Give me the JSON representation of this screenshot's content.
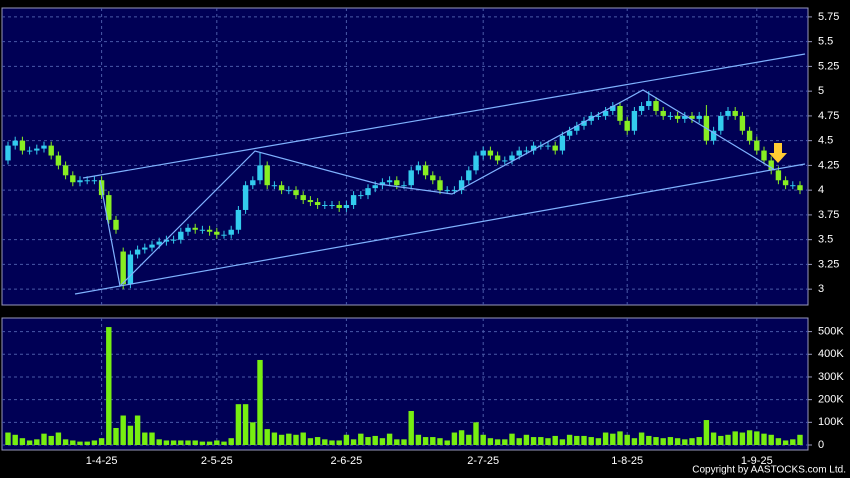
{
  "chart_data": [
    {
      "type": "candlestick",
      "up_color": "#33ccee",
      "down_color": "#88ee22",
      "grid": true,
      "open": [
        4.3,
        4.45,
        4.5,
        4.4,
        4.4,
        4.42,
        4.45,
        4.35,
        4.25,
        4.15,
        4.08,
        4.1,
        4.1,
        4.1,
        3.95,
        3.7,
        3.38,
        3.05,
        3.35,
        3.4,
        3.42,
        3.45,
        3.48,
        3.5,
        3.5,
        3.58,
        3.62,
        3.6,
        3.6,
        3.58,
        3.55,
        3.55,
        3.6,
        3.8,
        4.05,
        4.1,
        4.25,
        4.05,
        4.05,
        4.0,
        4.0,
        3.95,
        3.9,
        3.88,
        3.85,
        3.85,
        3.85,
        3.82,
        3.85,
        3.95,
        3.95,
        4.02,
        4.05,
        4.08,
        4.1,
        4.05,
        4.05,
        4.2,
        4.25,
        4.15,
        4.1,
        4.0,
        4.0,
        4.0,
        4.1,
        4.2,
        4.35,
        4.4,
        4.35,
        4.3,
        4.3,
        4.35,
        4.4,
        4.4,
        4.45,
        4.45,
        4.45,
        4.4,
        4.55,
        4.6,
        4.65,
        4.7,
        4.75,
        4.75,
        4.8,
        4.85,
        4.7,
        4.6,
        4.8,
        4.85,
        4.9,
        4.8,
        4.75,
        4.75,
        4.72,
        4.75,
        4.72,
        4.75,
        4.5,
        4.6,
        4.75,
        4.8,
        4.75,
        4.6,
        4.5,
        4.4,
        4.3,
        4.2,
        4.1,
        4.05,
        4.05
      ],
      "high": [
        4.49,
        4.54,
        4.54,
        4.44,
        4.46,
        4.49,
        4.49,
        4.39,
        4.29,
        4.19,
        4.14,
        4.14,
        4.14,
        4.14,
        3.99,
        3.74,
        3.42,
        3.39,
        3.44,
        3.46,
        3.49,
        3.52,
        3.54,
        3.54,
        3.62,
        3.66,
        3.66,
        3.64,
        3.64,
        3.62,
        3.59,
        3.64,
        3.84,
        4.09,
        4.14,
        4.38,
        4.29,
        4.09,
        4.09,
        4.04,
        4.04,
        3.99,
        3.94,
        3.92,
        3.89,
        3.89,
        3.89,
        3.89,
        3.99,
        3.99,
        4.06,
        4.09,
        4.12,
        4.14,
        4.14,
        4.09,
        4.24,
        4.29,
        4.29,
        4.19,
        4.14,
        4.04,
        4.04,
        4.14,
        4.24,
        4.39,
        4.44,
        4.44,
        4.39,
        4.34,
        4.39,
        4.44,
        4.44,
        4.49,
        4.49,
        4.49,
        4.49,
        4.59,
        4.64,
        4.69,
        4.74,
        4.79,
        4.79,
        4.84,
        4.89,
        4.89,
        4.74,
        4.84,
        4.89,
        5.0,
        4.94,
        4.84,
        4.79,
        4.79,
        4.79,
        4.79,
        4.79,
        4.86,
        4.64,
        4.79,
        4.84,
        4.84,
        4.79,
        4.64,
        4.54,
        4.44,
        4.34,
        4.24,
        4.14,
        4.09,
        4.09
      ],
      "low": [
        4.26,
        4.41,
        4.36,
        4.36,
        4.36,
        4.38,
        4.31,
        4.21,
        4.11,
        4.04,
        4.04,
        4.06,
        4.06,
        3.91,
        3.66,
        3.56,
        3.0,
        3.01,
        3.31,
        3.36,
        3.38,
        3.41,
        3.44,
        3.46,
        3.46,
        3.54,
        3.56,
        3.56,
        3.54,
        3.51,
        3.51,
        3.51,
        3.56,
        3.76,
        4.01,
        4.06,
        4.01,
        4.01,
        3.96,
        3.96,
        3.91,
        3.86,
        3.84,
        3.81,
        3.81,
        3.81,
        3.78,
        3.78,
        3.81,
        3.91,
        3.91,
        3.98,
        4.01,
        4.04,
        4.01,
        4.01,
        4.01,
        4.16,
        4.11,
        4.06,
        3.96,
        3.96,
        3.96,
        3.96,
        4.06,
        4.16,
        4.31,
        4.31,
        4.26,
        4.26,
        4.26,
        4.31,
        4.36,
        4.36,
        4.41,
        4.41,
        4.36,
        4.36,
        4.51,
        4.56,
        4.61,
        4.66,
        4.71,
        4.71,
        4.76,
        4.66,
        4.56,
        4.56,
        4.76,
        4.81,
        4.76,
        4.71,
        4.71,
        4.68,
        4.68,
        4.68,
        4.68,
        4.46,
        4.46,
        4.56,
        4.71,
        4.71,
        4.56,
        4.46,
        4.36,
        4.26,
        4.16,
        4.06,
        4.01,
        4.01,
        3.96
      ],
      "close": [
        4.45,
        4.5,
        4.4,
        4.4,
        4.42,
        4.45,
        4.35,
        4.25,
        4.15,
        4.08,
        4.1,
        4.1,
        4.1,
        3.95,
        3.7,
        3.6,
        3.05,
        3.35,
        3.4,
        3.42,
        3.45,
        3.48,
        3.5,
        3.5,
        3.58,
        3.62,
        3.6,
        3.6,
        3.58,
        3.55,
        3.55,
        3.6,
        3.8,
        4.05,
        4.1,
        4.25,
        4.05,
        4.05,
        4.0,
        4.0,
        3.95,
        3.9,
        3.88,
        3.85,
        3.85,
        3.85,
        3.82,
        3.85,
        3.95,
        3.95,
        4.02,
        4.05,
        4.08,
        4.1,
        4.05,
        4.05,
        4.2,
        4.25,
        4.15,
        4.1,
        4.0,
        4.0,
        4.0,
        4.1,
        4.2,
        4.35,
        4.4,
        4.35,
        4.3,
        4.3,
        4.35,
        4.4,
        4.4,
        4.45,
        4.45,
        4.45,
        4.4,
        4.55,
        4.6,
        4.65,
        4.7,
        4.75,
        4.75,
        4.8,
        4.85,
        4.7,
        4.6,
        4.8,
        4.85,
        4.9,
        4.8,
        4.75,
        4.75,
        4.72,
        4.75,
        4.72,
        4.75,
        4.5,
        4.6,
        4.75,
        4.8,
        4.75,
        4.6,
        4.5,
        4.4,
        4.3,
        4.2,
        4.1,
        4.05,
        4.05,
        4.0
      ],
      "ylim": [
        2.84,
        5.84
      ],
      "yticks": [
        3,
        3.25,
        3.5,
        3.75,
        4,
        4.25,
        4.5,
        4.75,
        5,
        5.25,
        5.5,
        5.75
      ]
    },
    {
      "type": "bar",
      "color": "#77ee11",
      "grid": true,
      "categories": [
        null,
        null,
        null,
        null,
        null,
        null,
        null,
        null,
        null,
        null,
        null,
        null,
        null,
        "1-4-25",
        null,
        null,
        null,
        null,
        null,
        null,
        null,
        null,
        null,
        null,
        null,
        null,
        null,
        null,
        null,
        "2-5-25",
        null,
        null,
        null,
        null,
        null,
        null,
        null,
        null,
        null,
        null,
        null,
        null,
        null,
        null,
        null,
        null,
        null,
        "2-6-25",
        null,
        null,
        null,
        null,
        null,
        null,
        null,
        null,
        null,
        null,
        null,
        null,
        null,
        null,
        null,
        null,
        null,
        null,
        "2-7-25",
        null,
        null,
        null,
        null,
        null,
        null,
        null,
        null,
        null,
        null,
        null,
        null,
        null,
        null,
        null,
        null,
        null,
        null,
        null,
        "1-8-25",
        null,
        null,
        null,
        null,
        null,
        null,
        null,
        null,
        null,
        null,
        null,
        null,
        null,
        null,
        null,
        null,
        null,
        "1-9-25",
        null,
        null,
        null,
        null,
        null,
        null
      ],
      "values": [
        55000,
        45000,
        30000,
        20000,
        25000,
        50000,
        40000,
        55000,
        25000,
        20000,
        15000,
        15000,
        20000,
        30000,
        520000,
        75000,
        130000,
        85000,
        130000,
        55000,
        55000,
        25000,
        20000,
        20000,
        20000,
        20000,
        20000,
        15000,
        15000,
        20000,
        15000,
        30000,
        180000,
        180000,
        100000,
        375000,
        70000,
        55000,
        45000,
        50000,
        45000,
        55000,
        30000,
        35000,
        25000,
        20000,
        20000,
        45000,
        25000,
        50000,
        35000,
        40000,
        30000,
        50000,
        25000,
        25000,
        150000,
        45000,
        35000,
        35000,
        30000,
        20000,
        55000,
        65000,
        45000,
        100000,
        45000,
        30000,
        25000,
        25000,
        50000,
        30000,
        45000,
        35000,
        35000,
        30000,
        40000,
        25000,
        45000,
        40000,
        40000,
        35000,
        30000,
        55000,
        50000,
        60000,
        45000,
        30000,
        55000,
        40000,
        35000,
        30000,
        35000,
        30000,
        25000,
        30000,
        35000,
        110000,
        55000,
        40000,
        45000,
        60000,
        55000,
        65000,
        60000,
        50000,
        45000,
        30000,
        20000,
        25000,
        45000
      ],
      "ylim": [
        0,
        560000
      ],
      "yticks": [
        0,
        {
          "value": 100000,
          "label": "100K"
        },
        {
          "value": 200000,
          "label": "200K"
        },
        {
          "value": 300000,
          "label": "300K"
        },
        {
          "value": 400000,
          "label": "400K"
        },
        {
          "value": 500000,
          "label": "500K"
        }
      ]
    }
  ],
  "footer": "Copyright by AASTOCKS.com Ltd."
}
